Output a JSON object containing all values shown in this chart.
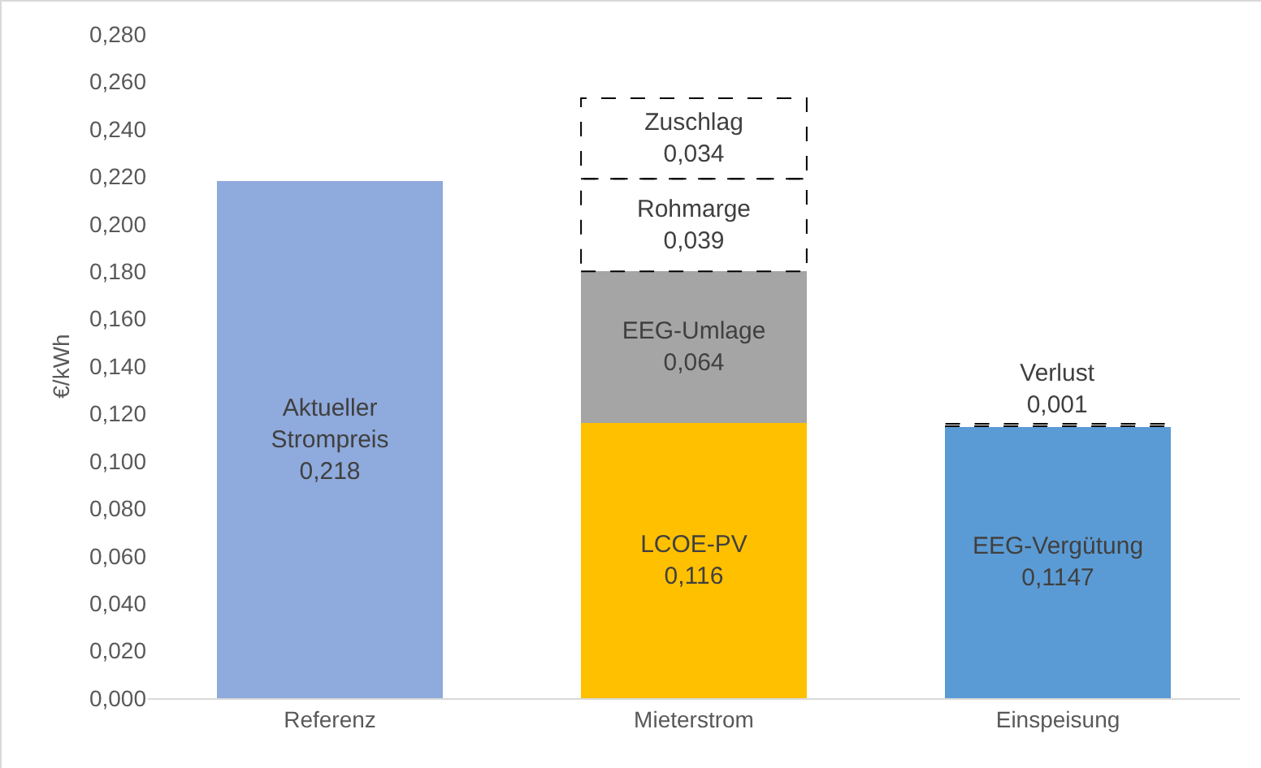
{
  "chart_data": {
    "type": "bar",
    "stacked": true,
    "ylabel": "€/kWh",
    "categories": [
      "Referenz",
      "Mieterstrom",
      "Einspeisung"
    ],
    "series": [
      {
        "name": "Aktueller Strompreis",
        "color": "#8faadc",
        "values": [
          0.218,
          null,
          null
        ],
        "value_labels": [
          "0,218",
          null,
          null
        ]
      },
      {
        "name": "LCOE-PV",
        "color": "#ffc000",
        "values": [
          null,
          0.116,
          null
        ],
        "value_labels": [
          null,
          "0,116",
          null
        ]
      },
      {
        "name": "EEG-Vergütung",
        "color": "#5b9bd5",
        "values": [
          null,
          null,
          0.1147
        ],
        "value_labels": [
          null,
          null,
          "0,1147"
        ]
      },
      {
        "name": "EEG-Umlage",
        "color": "#a5a5a5",
        "values": [
          null,
          0.064,
          null
        ],
        "value_labels": [
          null,
          "0,064",
          null
        ]
      },
      {
        "name": "Rohmarge",
        "color": "#ffffff",
        "line_style": "dashed",
        "values": [
          null,
          0.039,
          null
        ],
        "value_labels": [
          null,
          "0,039",
          null
        ]
      },
      {
        "name": "Zuschlag",
        "color": "#ffffff",
        "line_style": "dashed",
        "values": [
          null,
          0.034,
          null
        ],
        "value_labels": [
          null,
          "0,034",
          null
        ]
      },
      {
        "name": "Verlust",
        "color": "#ffffff",
        "line_style": "dashed",
        "values": [
          null,
          null,
          0.001
        ],
        "value_labels": [
          null,
          null,
          "0,001"
        ]
      }
    ],
    "ylim": [
      0,
      0.28
    ],
    "yticks": [
      {
        "value": 0,
        "label": "0,000"
      },
      {
        "value": 0.02,
        "label": "0,020"
      },
      {
        "value": 0.04,
        "label": "0,040"
      },
      {
        "value": 0.06,
        "label": "0,060"
      },
      {
        "value": 0.08,
        "label": "0,080"
      },
      {
        "value": 0.1,
        "label": "0,100"
      },
      {
        "value": 0.12,
        "label": "0,120"
      },
      {
        "value": 0.14,
        "label": "0,140"
      },
      {
        "value": 0.16,
        "label": "0,160"
      },
      {
        "value": 0.18,
        "label": "0,180"
      },
      {
        "value": 0.2,
        "label": "0,200"
      },
      {
        "value": 0.22,
        "label": "0,220"
      },
      {
        "value": 0.24,
        "label": "0,240"
      },
      {
        "value": 0.26,
        "label": "0,260"
      },
      {
        "value": 0.28,
        "label": "0,280"
      }
    ],
    "grid": false,
    "legend": false
  }
}
